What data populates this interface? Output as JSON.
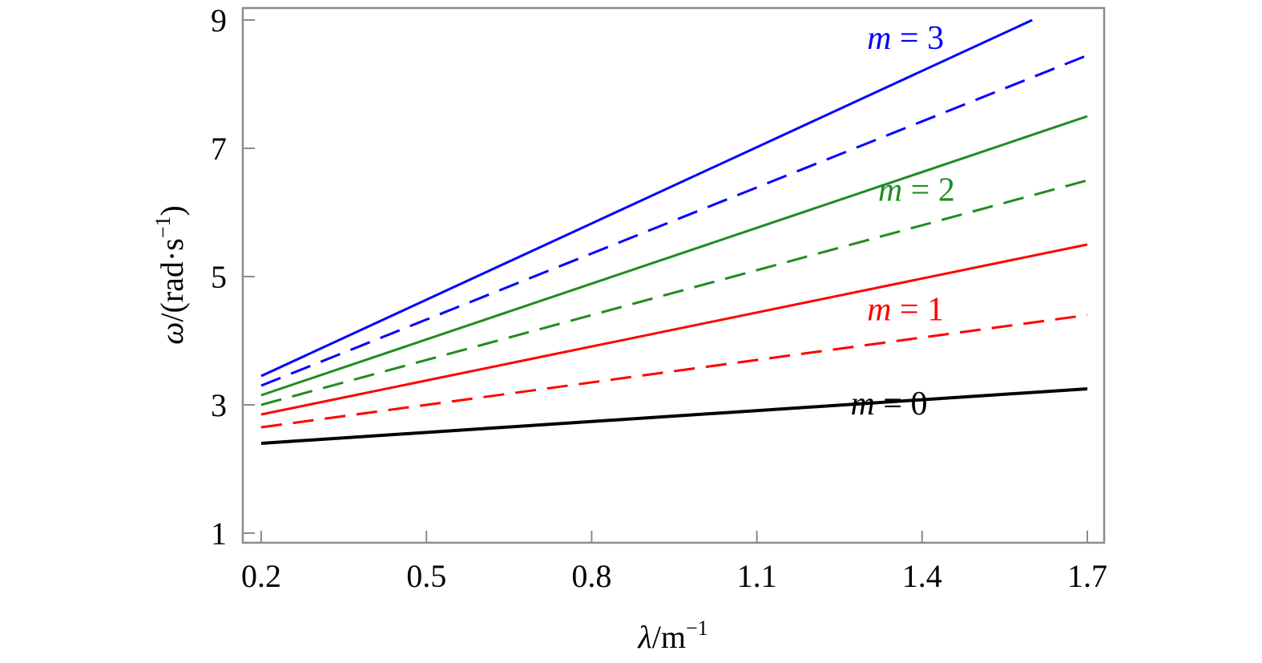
{
  "chart_data": {
    "type": "line",
    "xlabel": {
      "symbol": "λ",
      "rest": "/m",
      "sup": "−1"
    },
    "ylabel": {
      "symbol": "ω",
      "rest": "/(rad·s",
      "sup": "−1",
      "close": ")"
    },
    "xlim": [
      0.2,
      1.7
    ],
    "ylim": [
      1,
      9
    ],
    "x_ticks": [
      "0.2",
      "0.5",
      "0.8",
      "1.1",
      "1.4",
      "1.7"
    ],
    "y_ticks": [
      "1",
      "3",
      "5",
      "7",
      "9"
    ],
    "grid": false,
    "colors": {
      "m0": "#000000",
      "m1": "#ff0000",
      "m2": "#228b22",
      "m3": "#0000ff"
    },
    "series": [
      {
        "m": 0,
        "style": "solid",
        "color_key": "m0",
        "x": [
          0.2,
          1.7
        ],
        "y": [
          2.4,
          3.25
        ]
      },
      {
        "m": 1,
        "style": "dashed",
        "color_key": "m1",
        "x": [
          0.2,
          1.7
        ],
        "y": [
          2.65,
          4.4
        ]
      },
      {
        "m": 1,
        "style": "solid",
        "color_key": "m1",
        "x": [
          0.2,
          1.7
        ],
        "y": [
          2.85,
          5.5
        ]
      },
      {
        "m": 2,
        "style": "dashed",
        "color_key": "m2",
        "x": [
          0.2,
          1.7
        ],
        "y": [
          3.0,
          6.5
        ]
      },
      {
        "m": 2,
        "style": "solid",
        "color_key": "m2",
        "x": [
          0.2,
          1.7
        ],
        "y": [
          3.15,
          7.5
        ]
      },
      {
        "m": 3,
        "style": "dashed",
        "color_key": "m3",
        "x": [
          0.2,
          1.7
        ],
        "y": [
          3.3,
          8.45
        ]
      },
      {
        "m": 3,
        "style": "solid",
        "color_key": "m3",
        "x": [
          0.2,
          1.6
        ],
        "y": [
          3.45,
          9.0
        ]
      }
    ],
    "annotations": [
      {
        "var": "m",
        "text": " = 0",
        "color_key": "m0"
      },
      {
        "var": "m",
        "text": " = 1",
        "color_key": "m1"
      },
      {
        "var": "m",
        "text": " = 2",
        "color_key": "m2"
      },
      {
        "var": "m",
        "text": " = 3",
        "color_key": "m3"
      }
    ]
  }
}
